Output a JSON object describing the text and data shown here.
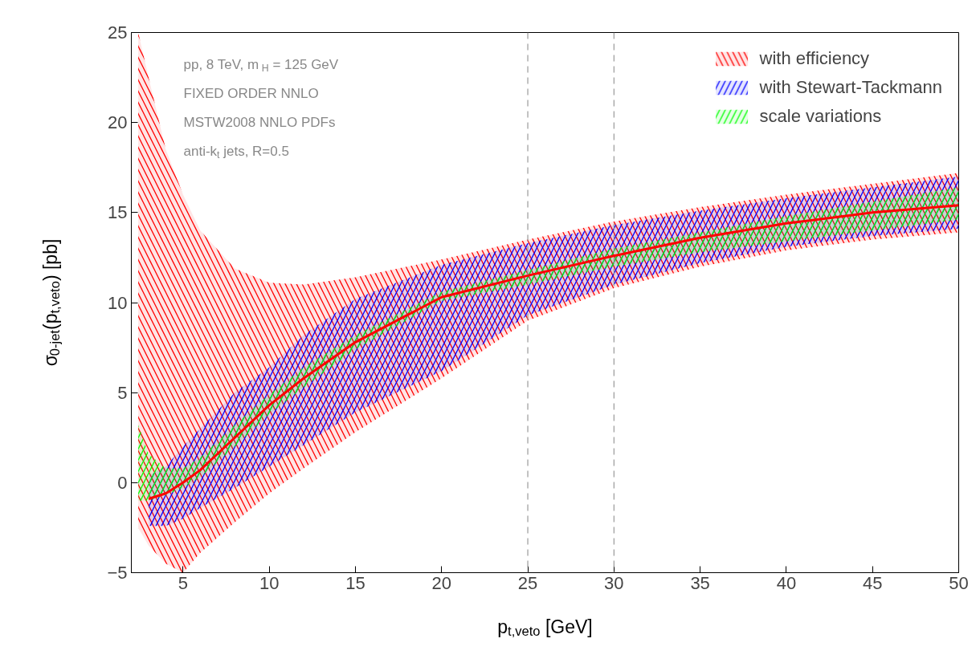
{
  "chart_data": {
    "type": "line",
    "xlabel": "p$_{t,veto}$ [GeV]",
    "ylabel": "σ$_{0-jet}$(p$_{t,veto}$) [pb]",
    "annotations": [
      "pp, 8 TeV, m$_{H}$ = 125 GeV",
      "FIXED ORDER NNLO",
      "MSTW2008 NNLO PDFs",
      "anti-k$_{t}$ jets, R=0.5"
    ],
    "xlim": [
      2,
      50
    ],
    "ylim": [
      -5,
      25
    ],
    "xticks": [
      5,
      10,
      15,
      20,
      25,
      30,
      35,
      40,
      45,
      50
    ],
    "yticks": [
      -5,
      0,
      5,
      10,
      15,
      20,
      25
    ],
    "grid": false,
    "legend": "top right",
    "ref_lines": [
      {
        "axis": "x",
        "value": 25,
        "color": "#999999",
        "line_style": "dashed"
      },
      {
        "axis": "x",
        "value": 30,
        "color": "#999999",
        "line_style": "dashed"
      }
    ],
    "x": [
      2.4,
      3,
      4,
      5,
      6,
      8,
      10,
      12,
      15,
      20,
      25,
      30,
      35,
      40,
      45,
      50
    ],
    "series": [
      {
        "name": "with efficiency",
        "color": "#ff0000",
        "values": [
          null,
          -0.9,
          -0.6,
          0.0,
          0.7,
          2.5,
          4.3,
          5.8,
          7.8,
          10.3,
          11.5,
          12.6,
          13.6,
          14.4,
          15.0,
          15.4
        ],
        "lower": [
          -2.5,
          -3.5,
          -4.5,
          -5,
          -3.9,
          -2.2,
          -0.6,
          0.8,
          2.8,
          5.8,
          9.0,
          10.8,
          12.0,
          12.9,
          13.5,
          13.9
        ],
        "upper": [
          25,
          22.5,
          18.5,
          16,
          14,
          11.9,
          11.1,
          11.0,
          11.4,
          12.4,
          13.5,
          14.5,
          15.3,
          16.0,
          16.6,
          17.2
        ]
      },
      {
        "name": "with Stewart-Tackmann",
        "color": "#0000ff",
        "values": [
          null,
          null,
          null,
          null,
          null,
          null,
          null,
          null,
          null,
          null,
          null,
          null,
          null,
          null,
          null,
          null
        ],
        "lower": [
          null,
          -2.4,
          -2.4,
          -2.0,
          -1.4,
          -0.3,
          0.9,
          2.1,
          3.9,
          6.2,
          9.3,
          11.0,
          12.2,
          13.1,
          13.7,
          14.1
        ],
        "upper": [
          null,
          0.4,
          0.9,
          2.0,
          3.0,
          5.0,
          6.4,
          8.2,
          10.2,
          12.1,
          13.3,
          14.3,
          15.1,
          15.8,
          16.4,
          17.0
        ]
      },
      {
        "name": "scale variations",
        "color": "#00ff00",
        "values": [
          null,
          null,
          null,
          null,
          null,
          null,
          null,
          null,
          null,
          null,
          null,
          null,
          null,
          null,
          null,
          null
        ],
        "lower": [
          -1.0,
          -1.0,
          -0.7,
          -0.3,
          0.3,
          2.0,
          3.8,
          5.3,
          7.4,
          10.1,
          11.0,
          12.0,
          12.8,
          13.4,
          14.0,
          14.6
        ],
        "upper": [
          3.2,
          1.6,
          0.8,
          0.8,
          1.4,
          3.2,
          4.9,
          6.4,
          8.2,
          10.6,
          11.8,
          13.0,
          13.9,
          14.8,
          15.6,
          16.4
        ]
      }
    ]
  }
}
